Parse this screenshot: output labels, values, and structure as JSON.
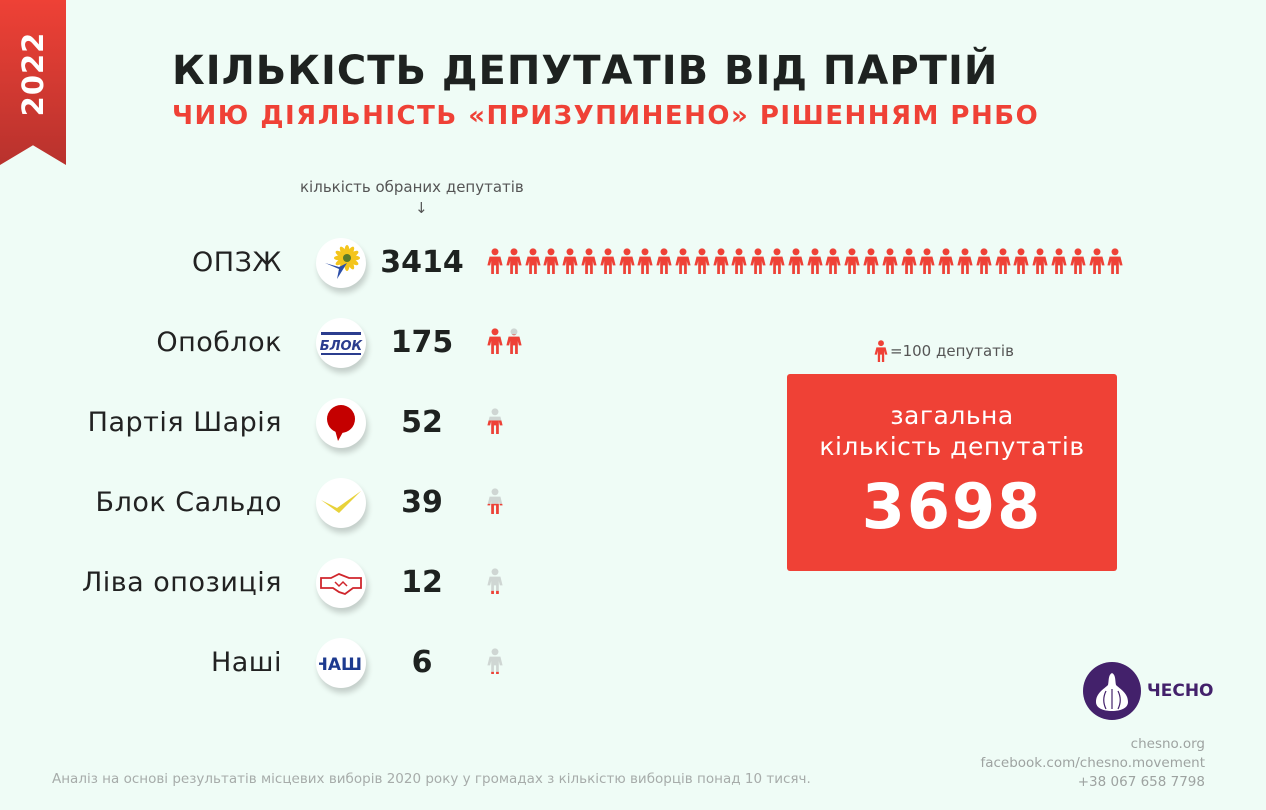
{
  "ribbon_year": "2022",
  "title": "КІЛЬКІСТЬ ДЕПУТАТІВ ВІД ПАРТІЙ",
  "subtitle": "ЧИЮ ДІЯЛЬНІСТЬ «ПРИЗУПИНЕНО» РІШЕННЯМ РНБО",
  "column_header": "кількість обраних депутатів",
  "column_arrow": "↓",
  "legend": {
    "icon": "person-icon",
    "text": "=100 депутатів"
  },
  "total": {
    "label_line1": "загальна",
    "label_line2": "кількість депутатів",
    "value": "3698"
  },
  "brand": {
    "name": "ЧЕСНО",
    "logo_icon": "garlic-icon"
  },
  "contacts": [
    "chesno.org",
    "facebook.com/chesno.movement",
    "+38 067 658 7798"
  ],
  "footnote": "Аналіз на основі результатів місцевих виборів 2020 року у громадах з кількістю виборців понад 10 тисяч.",
  "colors": {
    "accent": "#ef4136",
    "empty_icon": "#cfd6d3",
    "brand": "#43216b",
    "text": "#1e2220"
  },
  "chart_data": {
    "type": "pictogram",
    "title": "КІЛЬКІСТЬ ДЕПУТАТІВ ВІД ПАРТІЙ",
    "unit_per_icon": 100,
    "categories": [
      "ОПЗЖ",
      "Опоблок",
      "Партія Шарія",
      "Блок Сальдо",
      "Ліва опозиція",
      "Наші"
    ],
    "values": [
      3414,
      175,
      52,
      39,
      12,
      6
    ],
    "value_labels": [
      "3414",
      "175",
      "52",
      "39",
      "12",
      "6"
    ],
    "logos": [
      "opzzh-logo",
      "opoblok-logo",
      "sharii-logo",
      "saldo-logo",
      "liva-opozytsiia-logo",
      "nashi-logo"
    ],
    "total": 3698
  }
}
